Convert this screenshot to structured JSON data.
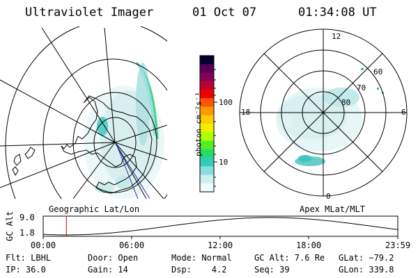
{
  "header": {
    "instrument": "Ultraviolet Imager",
    "date": "01 Oct 07",
    "time": "01:34:08 UT"
  },
  "colorbar": {
    "unit_label": "photon cm⁻²s⁻¹",
    "ticks": [
      "100",
      "10"
    ],
    "colors": [
      "#000033",
      "#550055",
      "#880055",
      "#bb0033",
      "#ee0000",
      "#ff5500",
      "#ff9900",
      "#ffcc00",
      "#eeee00",
      "#aaff00",
      "#55ee22",
      "#22dd66",
      "#33ccbb",
      "#88dddd",
      "#ccefef",
      "#f2fbfb"
    ]
  },
  "left_map": {
    "label": "Geographic Lat/Lon"
  },
  "right_map": {
    "label": "Apex MLat/MLT",
    "mlt_labels": {
      "top": "12",
      "left": "18",
      "right": "6",
      "bottom": "0"
    },
    "lat_labels": [
      "60",
      "70",
      "80"
    ]
  },
  "timeline": {
    "axis_label": "GC Alt",
    "yticks": [
      "9.0",
      "1.8"
    ],
    "xticks": [
      "00:00",
      "06:00",
      "12:00",
      "18:00",
      "23:59"
    ],
    "current_time_fraction": 0.0654,
    "marker_color": "#cc0000"
  },
  "meta": {
    "flt": "Flt: LBHL",
    "ip": "IP: 36.0",
    "door": "Door: Open",
    "gain": "Gain: 14",
    "mode": "Mode: Normal",
    "dsp": "Dsp:    4.2",
    "gcalt": "GC Alt: 7.6 Re",
    "seq": "Seq: 39",
    "glat": "GLat: −79.2",
    "glon": "GLon: 339.8"
  }
}
